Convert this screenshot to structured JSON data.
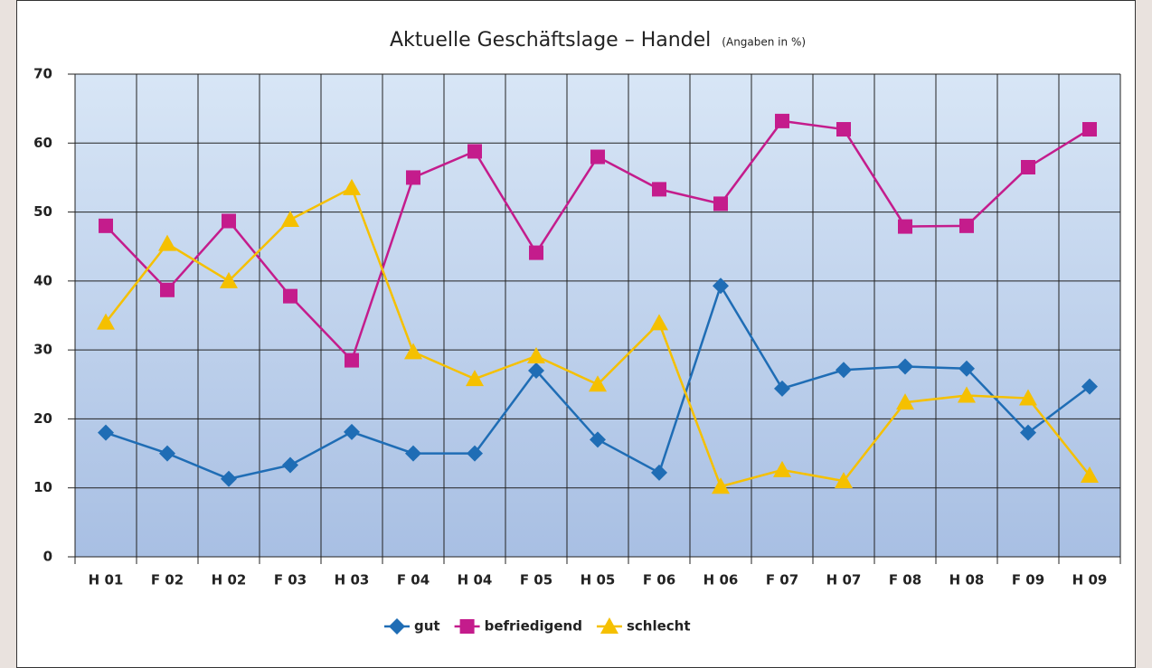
{
  "chart_data": {
    "type": "line",
    "title": "Aktuelle Geschäftslage – Handel",
    "subtitle": "(Angaben in %)",
    "categories": [
      "H 01",
      "F 02",
      "H 02",
      "F 03",
      "H 03",
      "F 04",
      "H 04",
      "F 05",
      "H 05",
      "F 06",
      "H 06",
      "F 07",
      "H 07",
      "F 08",
      "H 08",
      "F 09",
      "H 09"
    ],
    "series": [
      {
        "name": "gut",
        "color": "#1f6db5",
        "marker": "diamond",
        "values": [
          18,
          15,
          11.3,
          13.3,
          18.1,
          15,
          15,
          27,
          17,
          12.2,
          39.3,
          24.4,
          27.1,
          27.6,
          27.3,
          18,
          24.7
        ]
      },
      {
        "name": "befriedigend",
        "color": "#c41c8c",
        "marker": "square",
        "values": [
          48,
          38.7,
          48.7,
          37.8,
          28.5,
          55,
          58.8,
          44.1,
          58,
          53.3,
          51.2,
          63.2,
          62,
          47.9,
          48,
          56.5,
          62
        ]
      },
      {
        "name": "schlecht",
        "color": "#f5c000",
        "marker": "triangle",
        "values": [
          34,
          45.4,
          40,
          48.9,
          53.5,
          29.7,
          25.8,
          29.1,
          25,
          33.9,
          10.2,
          12.6,
          11,
          22.4,
          23.4,
          23,
          11.8
        ]
      }
    ],
    "ylim": [
      0,
      70
    ],
    "yticks": [
      0,
      10,
      20,
      30,
      40,
      50,
      60,
      70
    ],
    "grid": true,
    "legend": "bottom"
  }
}
